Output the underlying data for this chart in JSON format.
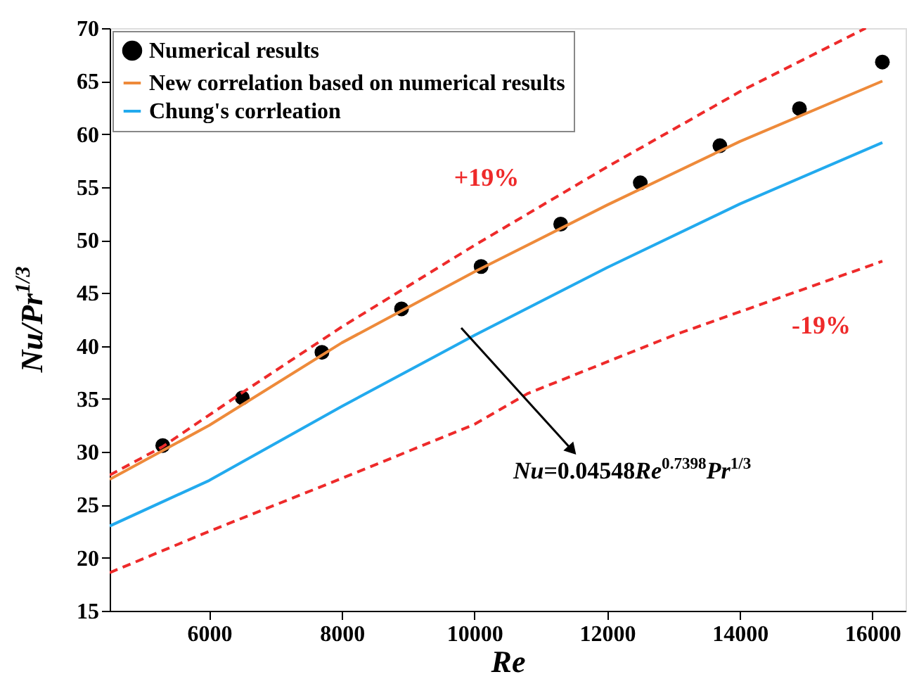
{
  "chart_data": {
    "type": "scatter",
    "xlabel": "Re",
    "ylabel": "Nu/Pr$^{1/3}$",
    "xlim": [
      4500,
      16500
    ],
    "ylim": [
      15,
      70
    ],
    "xticks": [
      {
        "value": 6000,
        "label": "6000"
      },
      {
        "value": 8000,
        "label": "8000"
      },
      {
        "value": 10000,
        "label": "10000"
      },
      {
        "value": 12000,
        "label": "12000"
      },
      {
        "value": 14000,
        "label": "14000"
      },
      {
        "value": 16000,
        "label": "16000"
      }
    ],
    "yticks": [
      15,
      20,
      25,
      30,
      35,
      40,
      45,
      50,
      55,
      60,
      65,
      70
    ],
    "legend": "top left",
    "grid": false,
    "series": [
      {
        "name": "Numerical results",
        "marker": "circle",
        "color": "#000000",
        "x": [
          5300,
          6500,
          7700,
          8900,
          10100,
          11300,
          12500,
          13700,
          14900,
          16150
        ],
        "values": [
          30.6,
          35.1,
          39.4,
          43.5,
          47.5,
          51.5,
          55.4,
          58.9,
          62.4,
          66.8
        ]
      },
      {
        "name": "New correlation based on numerical results",
        "type": "line",
        "line_style": "solid",
        "color": "#ee8a3a",
        "x": [
          4500,
          6000,
          8000,
          10000,
          12000,
          14000,
          16150
        ],
        "values": [
          27.4,
          32.5,
          40.3,
          47.0,
          53.3,
          59.3,
          65.0
        ]
      },
      {
        "name": "Chung's corrleation",
        "type": "line",
        "line_style": "solid",
        "color": "#22aaee",
        "x": [
          4500,
          6000,
          8000,
          10000,
          12000,
          14000,
          16150
        ],
        "values": [
          23.0,
          27.3,
          34.3,
          41.0,
          47.4,
          53.4,
          59.2
        ]
      },
      {
        "type": "line",
        "line_style": "dashed",
        "color": "#ee2a2a",
        "x": [
          4500,
          5300,
          6500,
          8000,
          10000,
          12000,
          14000,
          15900
        ],
        "values": [
          27.8,
          30.5,
          35.6,
          41.8,
          49.5,
          56.9,
          64.0,
          70.0
        ]
      },
      {
        "type": "line",
        "line_style": "dashed",
        "color": "#ee2a2a",
        "x": [
          4500,
          6000,
          8000,
          10000,
          10800,
          13000,
          16150
        ],
        "values": [
          18.6,
          22.5,
          27.5,
          32.6,
          35.5,
          41.0,
          48.0
        ]
      }
    ],
    "annotations": [
      "+19%",
      "-19%",
      "Nu=0.04548Re$^{0.7398}$Pr$^{1/3}$"
    ]
  }
}
